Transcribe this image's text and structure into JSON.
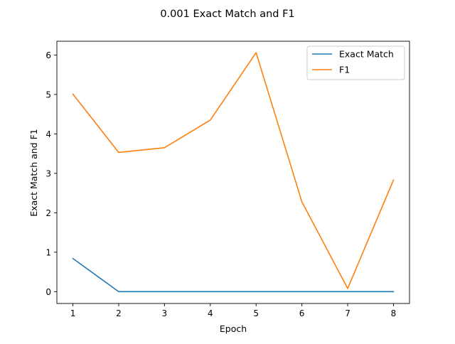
{
  "chart_data": {
    "type": "line",
    "title": "0.001 Exact Match and F1",
    "xlabel": "Epoch",
    "ylabel": "Exact Match and F1",
    "x": [
      1,
      2,
      3,
      4,
      5,
      6,
      7,
      8
    ],
    "xticks": [
      "1",
      "2",
      "3",
      "4",
      "5",
      "6",
      "7",
      "8"
    ],
    "yticks": [
      "0",
      "1",
      "2",
      "3",
      "4",
      "5",
      "6"
    ],
    "xlim": [
      0.65,
      8.35
    ],
    "ylim": [
      -0.3,
      6.35
    ],
    "grid": false,
    "legend_position": "upper right",
    "series": [
      {
        "name": "Exact Match",
        "color": "#1f77b4",
        "values": [
          0.84,
          0.0,
          0.0,
          0.0,
          0.0,
          0.0,
          0.0,
          0.0
        ]
      },
      {
        "name": "F1",
        "color": "#ff7f0e",
        "values": [
          5.01,
          3.53,
          3.65,
          4.35,
          6.06,
          2.28,
          0.08,
          2.83
        ]
      }
    ]
  }
}
